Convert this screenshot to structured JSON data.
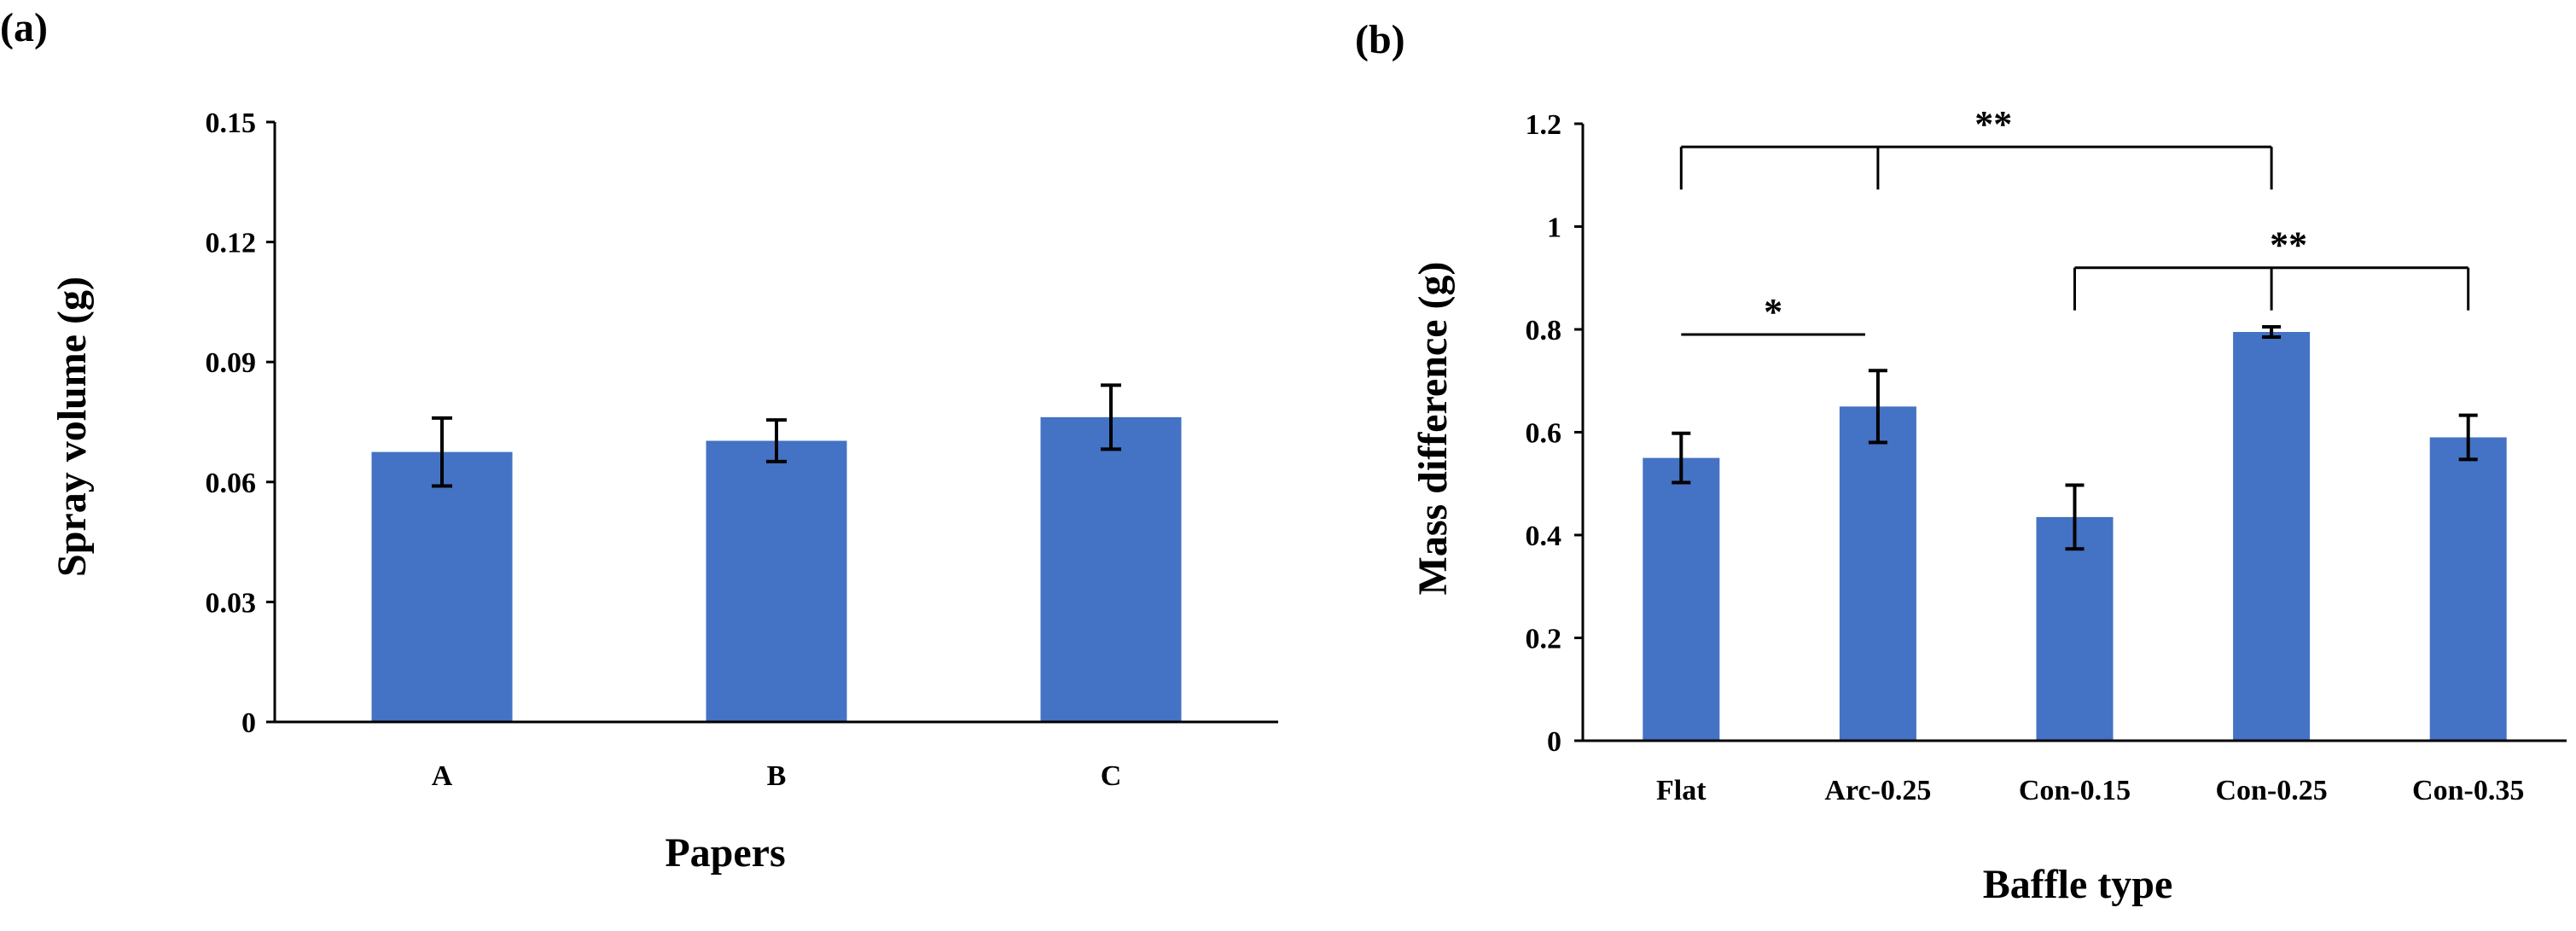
{
  "chart_data": [
    {
      "panel_label": "(a)",
      "type": "bar",
      "categories": [
        "A",
        "B",
        "C"
      ],
      "values": [
        0.0675,
        0.0703,
        0.0762
      ],
      "errors": [
        0.0085,
        0.0052,
        0.008
      ],
      "xlabel": "Papers",
      "ylabel": "Spray volume (g)",
      "ylim": [
        0,
        0.15
      ],
      "yticks": [
        "0",
        "0.03",
        "0.06",
        "0.09",
        "0.12",
        "0.15"
      ],
      "ytick_values": [
        0,
        0.03,
        0.06,
        0.09,
        0.12,
        0.15
      ],
      "bar_color": "#4472C4",
      "significance": []
    },
    {
      "panel_label": "(b)",
      "type": "bar",
      "categories": [
        "Flat",
        "Arc-0.25",
        "Con-0.15",
        "Con-0.25",
        "Con-0.35"
      ],
      "values": [
        0.55,
        0.65,
        0.435,
        0.795,
        0.59
      ],
      "errors": [
        0.048,
        0.07,
        0.062,
        0.01,
        0.043
      ],
      "xlabel": "Baffle type",
      "ylabel": "Mass difference (g)",
      "ylim": [
        0,
        1.2
      ],
      "yticks": [
        "0",
        "0.2",
        "0.4",
        "0.6",
        "0.8",
        "1",
        "1.2"
      ],
      "ytick_values": [
        0,
        0.2,
        0.4,
        0.6,
        0.8,
        1.0,
        1.2
      ],
      "bar_color": "#4472C4",
      "significance": [
        {
          "label": "**",
          "type": "bracket",
          "from": 0,
          "to": 3,
          "mid": 1,
          "level": 1.155
        },
        {
          "label": "**",
          "type": "bracket",
          "from": 2,
          "to": 4,
          "mid": 3,
          "level": 0.92
        },
        {
          "label": "*",
          "type": "line",
          "from": 0,
          "to": 1,
          "level": 0.79
        }
      ]
    }
  ]
}
